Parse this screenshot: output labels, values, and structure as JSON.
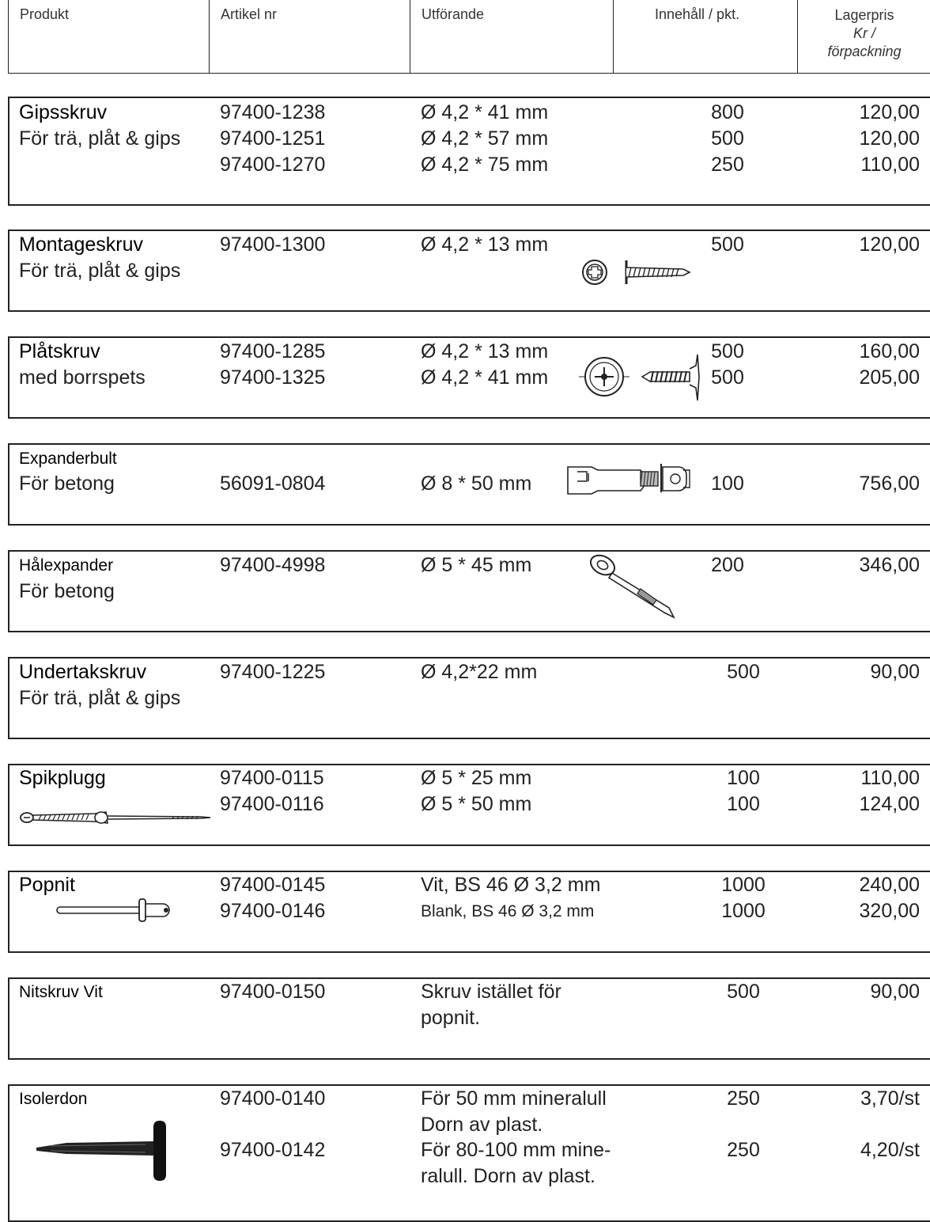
{
  "header": {
    "produkt": "Produkt",
    "artikel": "Artikel nr",
    "utforande": "Utförande",
    "innehall": "Innehåll / pkt.",
    "lagerpris": "Lagerpris",
    "kr": "Kr /",
    "forpackning": "förpackning"
  },
  "products": [
    {
      "name": "Gipsskruv",
      "sub": "För trä, plåt & gips",
      "rows": [
        {
          "art": "97400-1238",
          "utf": "Ø 4,2 * 41 mm",
          "qty": "800",
          "price": "120,00"
        },
        {
          "art": "97400-1251",
          "utf": "Ø 4,2 * 57 mm",
          "qty": "500",
          "price": "120,00"
        },
        {
          "art": "97400-1270",
          "utf": "Ø 4,2 * 75 mm",
          "qty": "250",
          "price": "110,00"
        }
      ]
    },
    {
      "name": "Montageskruv",
      "sub": "För trä, plåt & gips",
      "rows": [
        {
          "art": "97400-1300",
          "utf": "Ø 4,2 * 13 mm",
          "qty": "500",
          "price": "120,00"
        }
      ]
    },
    {
      "name": "Plåtskruv",
      "sub": "med borrspets",
      "rows": [
        {
          "art": "97400-1285",
          "utf": "Ø 4,2 * 13 mm",
          "qty": "500",
          "price": "160,00"
        },
        {
          "art": "97400-1325",
          "utf": "Ø 4,2 * 41 mm",
          "qty": "500",
          "price": "205,00"
        }
      ]
    },
    {
      "name": "Expanderbult",
      "sub": "För betong",
      "rows": [
        {
          "art": "56091-0804",
          "utf": "Ø 8 * 50 mm",
          "qty": "100",
          "price": "756,00"
        }
      ]
    },
    {
      "name": "Hålexpander",
      "sub": "För betong",
      "rows": [
        {
          "art": "97400-4998",
          "utf": "Ø 5 * 45 mm",
          "qty": "200",
          "price": "346,00"
        }
      ]
    },
    {
      "name": "Undertakskruv",
      "sub": "För trä, plåt & gips",
      "rows": [
        {
          "art": "97400-1225",
          "utf": "Ø 4,2*22 mm",
          "qty": "500",
          "price": "90,00"
        }
      ]
    },
    {
      "name": "Spikplugg",
      "rows": [
        {
          "art": "97400-0115",
          "utf": "Ø 5 * 25 mm",
          "qty": "100",
          "price": "110,00"
        },
        {
          "art": "97400-0116",
          "utf": "Ø 5 * 50 mm",
          "qty": "100",
          "price": "124,00"
        }
      ]
    },
    {
      "name": "Popnit",
      "rows": [
        {
          "art": "97400-0145",
          "utf": "Vit, BS 46 Ø 3,2 mm",
          "qty": "1000",
          "price": "240,00"
        },
        {
          "art": "97400-0146",
          "utf": "Blank, BS 46 Ø 3,2 mm",
          "qty": "1000",
          "price": "320,00"
        }
      ]
    },
    {
      "name": "Nitskruv  Vit",
      "rows": [
        {
          "art": "97400-0150",
          "utf": "Skruv istället för",
          "utf2": "popnit.",
          "qty": "500",
          "price": "90,00"
        }
      ]
    },
    {
      "name": "Isolerdon",
      "rows": [
        {
          "art": "97400-0140",
          "utf": "För 50 mm mineralull",
          "utf2": "Dorn av plast.",
          "qty": "250",
          "price": "3,70/st"
        },
        {
          "art": "97400-0142",
          "utf": "För 80-100 mm mine-",
          "utf2": "ralull. Dorn av plast.",
          "qty": "250",
          "price": "4,20/st"
        }
      ]
    }
  ]
}
